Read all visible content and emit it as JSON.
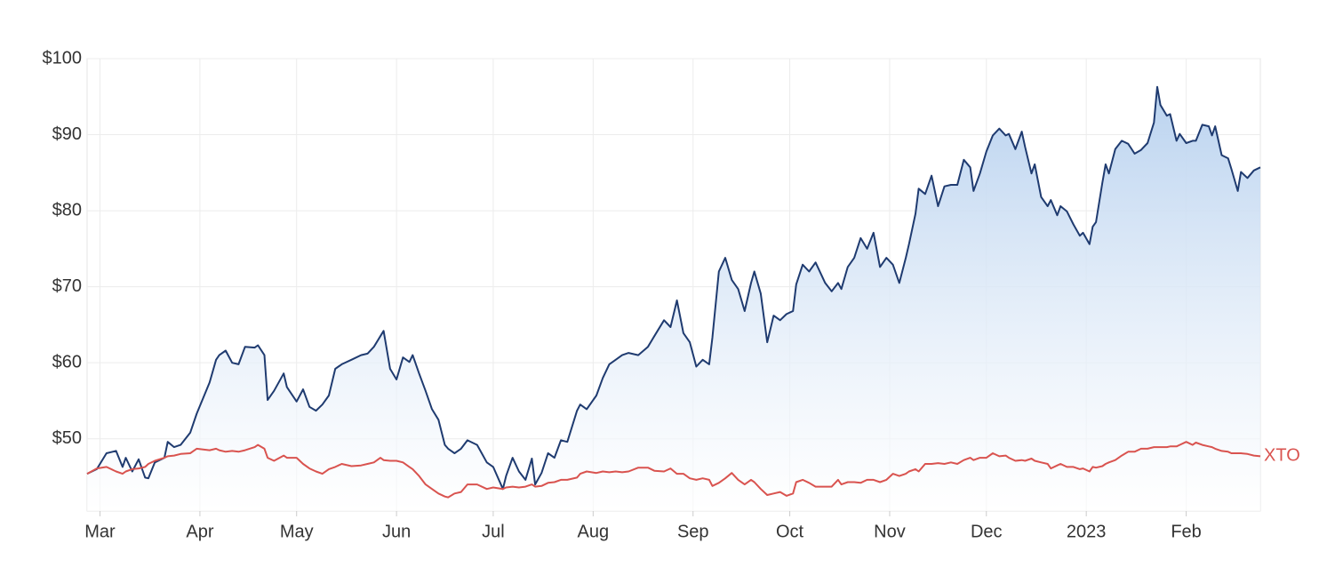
{
  "chart_data": {
    "type": "line",
    "x": [
      "2022-02-25",
      "2022-02-28",
      "2022-03-03",
      "2022-03-06",
      "2022-03-08",
      "2022-03-09",
      "2022-03-11",
      "2022-03-13",
      "2022-03-15",
      "2022-03-16",
      "2022-03-18",
      "2022-03-21",
      "2022-03-22",
      "2022-03-24",
      "2022-03-26",
      "2022-03-29",
      "2022-03-31",
      "2022-04-04",
      "2022-04-06",
      "2022-04-07",
      "2022-04-09",
      "2022-04-11",
      "2022-04-13",
      "2022-04-15",
      "2022-04-18",
      "2022-04-19",
      "2022-04-21",
      "2022-04-22",
      "2022-04-24",
      "2022-04-27",
      "2022-04-28",
      "2022-05-01",
      "2022-05-03",
      "2022-05-05",
      "2022-05-07",
      "2022-05-09",
      "2022-05-11",
      "2022-05-13",
      "2022-05-15",
      "2022-05-18",
      "2022-05-21",
      "2022-05-23",
      "2022-05-25",
      "2022-05-27",
      "2022-05-28",
      "2022-05-30",
      "2022-06-01",
      "2022-06-03",
      "2022-06-05",
      "2022-06-06",
      "2022-06-08",
      "2022-06-10",
      "2022-06-12",
      "2022-06-14",
      "2022-06-16",
      "2022-06-17",
      "2022-06-19",
      "2022-06-21",
      "2022-06-23",
      "2022-06-26",
      "2022-06-29",
      "2022-07-01",
      "2022-07-04",
      "2022-07-05",
      "2022-07-07",
      "2022-07-09",
      "2022-07-11",
      "2022-07-13",
      "2022-07-14",
      "2022-07-16",
      "2022-07-18",
      "2022-07-20",
      "2022-07-22",
      "2022-07-24",
      "2022-07-27",
      "2022-07-28",
      "2022-07-30",
      "2022-08-02",
      "2022-08-04",
      "2022-08-06",
      "2022-08-08",
      "2022-08-10",
      "2022-08-12",
      "2022-08-15",
      "2022-08-18",
      "2022-08-20",
      "2022-08-23",
      "2022-08-25",
      "2022-08-27",
      "2022-08-29",
      "2022-08-31",
      "2022-09-02",
      "2022-09-04",
      "2022-09-06",
      "2022-09-07",
      "2022-09-09",
      "2022-09-11",
      "2022-09-13",
      "2022-09-15",
      "2022-09-17",
      "2022-09-19",
      "2022-09-20",
      "2022-09-22",
      "2022-09-24",
      "2022-09-26",
      "2022-09-28",
      "2022-09-30",
      "2022-10-02",
      "2022-10-03",
      "2022-10-05",
      "2022-10-07",
      "2022-10-09",
      "2022-10-12",
      "2022-10-14",
      "2022-10-16",
      "2022-10-17",
      "2022-10-19",
      "2022-10-21",
      "2022-10-23",
      "2022-10-25",
      "2022-10-27",
      "2022-10-29",
      "2022-10-31",
      "2022-11-02",
      "2022-11-04",
      "2022-11-06",
      "2022-11-07",
      "2022-11-09",
      "2022-11-10",
      "2022-11-12",
      "2022-11-14",
      "2022-11-16",
      "2022-11-18",
      "2022-11-20",
      "2022-11-22",
      "2022-11-24",
      "2022-11-26",
      "2022-11-27",
      "2022-11-29",
      "2022-12-01",
      "2022-12-03",
      "2022-12-05",
      "2022-12-07",
      "2022-12-08",
      "2022-12-10",
      "2022-12-12",
      "2022-12-13",
      "2022-12-15",
      "2022-12-16",
      "2022-12-18",
      "2022-12-20",
      "2022-12-21",
      "2022-12-23",
      "2022-12-24",
      "2022-12-26",
      "2022-12-28",
      "2022-12-30",
      "2022-12-31",
      "2023-01-02",
      "2023-01-03",
      "2023-01-04",
      "2023-01-06",
      "2023-01-07",
      "2023-01-08",
      "2023-01-10",
      "2023-01-12",
      "2023-01-14",
      "2023-01-16",
      "2023-01-18",
      "2023-01-20",
      "2023-01-22",
      "2023-01-23",
      "2023-01-24",
      "2023-01-26",
      "2023-01-27",
      "2023-01-29",
      "2023-01-30",
      "2023-02-01",
      "2023-02-03",
      "2023-02-04",
      "2023-02-06",
      "2023-02-08",
      "2023-02-09",
      "2023-02-10",
      "2023-02-12",
      "2023-02-14",
      "2023-02-15",
      "2023-02-17",
      "2023-02-18",
      "2023-02-20",
      "2023-02-22",
      "2023-02-24"
    ],
    "series": [
      {
        "color": "#1f3b70",
        "fill": true,
        "values": [
          45.4,
          46.0,
          48.1,
          48.4,
          46.3,
          47.5,
          45.7,
          47.3,
          44.9,
          44.8,
          46.9,
          47.5,
          49.6,
          48.9,
          49.2,
          50.8,
          53.3,
          57.4,
          60.4,
          61.0,
          61.6,
          60.0,
          59.8,
          62.1,
          62.0,
          62.3,
          61.0,
          55.1,
          56.3,
          58.6,
          56.8,
          54.9,
          56.5,
          54.2,
          53.7,
          54.5,
          55.7,
          59.2,
          59.8,
          60.4,
          61.0,
          61.2,
          62.1,
          63.5,
          64.2,
          59.2,
          57.8,
          60.7,
          60.1,
          61.0,
          58.6,
          56.3,
          53.9,
          52.5,
          49.2,
          48.7,
          48.1,
          48.7,
          49.8,
          49.2,
          46.9,
          46.3,
          43.4,
          45.1,
          47.5,
          45.7,
          44.6,
          47.4,
          44.0,
          45.5,
          48.1,
          47.5,
          49.8,
          49.6,
          53.7,
          54.5,
          53.9,
          55.7,
          58.0,
          59.8,
          60.4,
          61.0,
          61.3,
          61.0,
          62.1,
          63.5,
          65.6,
          64.7,
          68.2,
          63.9,
          62.7,
          59.5,
          60.4,
          59.8,
          63.3,
          72.0,
          73.8,
          70.9,
          69.7,
          66.8,
          70.5,
          72.0,
          69.1,
          62.7,
          66.2,
          65.6,
          66.4,
          66.8,
          70.3,
          72.9,
          72.0,
          73.2,
          70.5,
          69.4,
          70.5,
          69.7,
          72.6,
          73.8,
          76.4,
          75.0,
          77.1,
          72.6,
          73.8,
          72.9,
          70.5,
          73.8,
          75.6,
          79.6,
          82.9,
          82.2,
          84.6,
          80.6,
          83.2,
          83.4,
          83.4,
          86.7,
          85.7,
          82.6,
          84.9,
          87.8,
          89.9,
          90.8,
          89.9,
          90.1,
          88.1,
          90.4,
          88.4,
          84.9,
          86.1,
          81.8,
          80.6,
          81.4,
          79.4,
          80.6,
          79.9,
          78.2,
          76.7,
          77.1,
          75.6,
          77.9,
          78.5,
          83.7,
          86.1,
          84.9,
          88.1,
          89.2,
          88.8,
          87.5,
          88.0,
          88.9,
          91.6,
          96.3,
          93.9,
          92.5,
          92.7,
          89.2,
          90.1,
          88.9,
          89.2,
          89.2,
          91.3,
          91.1,
          89.9,
          91.1,
          87.3,
          86.9,
          85.5,
          82.6,
          85.1,
          84.3,
          85.3,
          85.7
        ]
      },
      {
        "name": "XTO",
        "color": "#d9534f",
        "values": [
          45.4,
          46.1,
          46.3,
          45.7,
          45.4,
          45.7,
          46.0,
          46.1,
          46.3,
          46.7,
          47.1,
          47.5,
          47.7,
          47.8,
          48.0,
          48.1,
          48.7,
          48.5,
          48.7,
          48.5,
          48.3,
          48.4,
          48.3,
          48.5,
          48.9,
          49.2,
          48.7,
          47.5,
          47.1,
          47.8,
          47.5,
          47.5,
          46.7,
          46.1,
          45.7,
          45.4,
          46.0,
          46.3,
          46.7,
          46.4,
          46.5,
          46.7,
          46.9,
          47.5,
          47.2,
          47.1,
          47.1,
          46.9,
          46.3,
          46.0,
          45.1,
          44.0,
          43.4,
          42.8,
          42.4,
          42.3,
          42.8,
          43.0,
          44.0,
          44.0,
          43.4,
          43.6,
          43.4,
          43.6,
          43.7,
          43.6,
          43.7,
          44.0,
          43.7,
          43.8,
          44.2,
          44.3,
          44.6,
          44.6,
          44.9,
          45.4,
          45.7,
          45.5,
          45.7,
          45.6,
          45.7,
          45.6,
          45.7,
          46.2,
          46.2,
          45.8,
          45.7,
          46.1,
          45.4,
          45.4,
          44.8,
          44.6,
          44.8,
          44.6,
          43.8,
          44.2,
          44.8,
          45.5,
          44.6,
          44.0,
          44.6,
          44.3,
          43.4,
          42.6,
          42.8,
          43.0,
          42.5,
          42.8,
          44.3,
          44.6,
          44.2,
          43.7,
          43.7,
          43.7,
          44.6,
          44.0,
          44.3,
          44.3,
          44.2,
          44.6,
          44.6,
          44.3,
          44.6,
          45.4,
          45.1,
          45.4,
          45.7,
          46.0,
          45.7,
          46.7,
          46.7,
          46.8,
          46.7,
          46.9,
          46.7,
          47.2,
          47.5,
          47.2,
          47.5,
          47.5,
          48.1,
          47.7,
          47.8,
          47.5,
          47.1,
          47.2,
          47.1,
          47.4,
          47.1,
          46.9,
          46.7,
          46.1,
          46.5,
          46.7,
          46.3,
          46.3,
          46.0,
          46.1,
          45.7,
          46.3,
          46.2,
          46.4,
          46.7,
          46.9,
          47.2,
          47.8,
          48.3,
          48.3,
          48.7,
          48.7,
          48.9,
          48.9,
          48.9,
          48.9,
          49.0,
          49.0,
          49.2,
          49.6,
          49.2,
          49.5,
          49.2,
          49.0,
          48.9,
          48.7,
          48.4,
          48.3,
          48.1,
          48.1,
          48.1,
          48.0,
          47.8,
          47.7
        ]
      }
    ],
    "xlim": [
      "2022-02-25",
      "2023-02-24"
    ],
    "xticks": [
      {
        "value": "2022-03-01",
        "label": "Mar"
      },
      {
        "value": "2022-04-01",
        "label": "Apr"
      },
      {
        "value": "2022-05-01",
        "label": "May"
      },
      {
        "value": "2022-06-01",
        "label": "Jun"
      },
      {
        "value": "2022-07-01",
        "label": "Jul"
      },
      {
        "value": "2022-08-01",
        "label": "Aug"
      },
      {
        "value": "2022-09-01",
        "label": "Sep"
      },
      {
        "value": "2022-10-01",
        "label": "Oct"
      },
      {
        "value": "2022-11-01",
        "label": "Nov"
      },
      {
        "value": "2022-12-01",
        "label": "Dec"
      },
      {
        "value": "2023-01-01",
        "label": "2023"
      },
      {
        "value": "2023-02-01",
        "label": "Feb"
      }
    ],
    "ylim": [
      40.5,
      100
    ],
    "yticks": [
      {
        "value": 50,
        "label": "$50"
      },
      {
        "value": 60,
        "label": "$60"
      },
      {
        "value": 70,
        "label": "$70"
      },
      {
        "value": 80,
        "label": "$80"
      },
      {
        "value": 90,
        "label": "$90"
      },
      {
        "value": 100,
        "label": "$100"
      }
    ],
    "grid": true
  }
}
